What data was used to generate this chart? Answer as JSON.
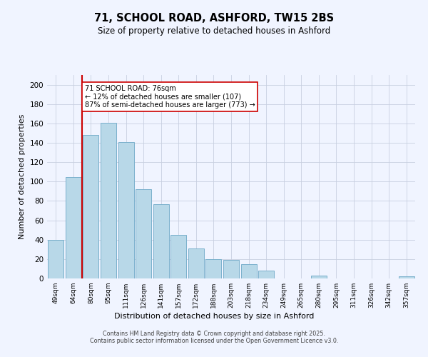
{
  "title": "71, SCHOOL ROAD, ASHFORD, TW15 2BS",
  "subtitle": "Size of property relative to detached houses in Ashford",
  "xlabel": "Distribution of detached houses by size in Ashford",
  "ylabel": "Number of detached properties",
  "bin_labels": [
    "49sqm",
    "64sqm",
    "80sqm",
    "95sqm",
    "111sqm",
    "126sqm",
    "141sqm",
    "157sqm",
    "172sqm",
    "188sqm",
    "203sqm",
    "218sqm",
    "234sqm",
    "249sqm",
    "265sqm",
    "280sqm",
    "295sqm",
    "311sqm",
    "326sqm",
    "342sqm",
    "357sqm"
  ],
  "bar_values": [
    40,
    105,
    148,
    161,
    141,
    92,
    77,
    45,
    31,
    20,
    19,
    15,
    8,
    0,
    0,
    3,
    0,
    0,
    0,
    0,
    2
  ],
  "bar_color": "#b8d8e8",
  "bar_edge_color": "#7ab0cc",
  "ylim": [
    0,
    210
  ],
  "yticks": [
    0,
    20,
    40,
    60,
    80,
    100,
    120,
    140,
    160,
    180,
    200
  ],
  "vline_color": "#cc0000",
  "annotation_text": "71 SCHOOL ROAD: 76sqm\n← 12% of detached houses are smaller (107)\n87% of semi-detached houses are larger (773) →",
  "annotation_box_color": "#ffffff",
  "annotation_box_edge": "#cc0000",
  "footer_line1": "Contains HM Land Registry data © Crown copyright and database right 2025.",
  "footer_line2": "Contains public sector information licensed under the Open Government Licence v3.0.",
  "background_color": "#f0f4ff",
  "grid_color": "#c8cfe0"
}
